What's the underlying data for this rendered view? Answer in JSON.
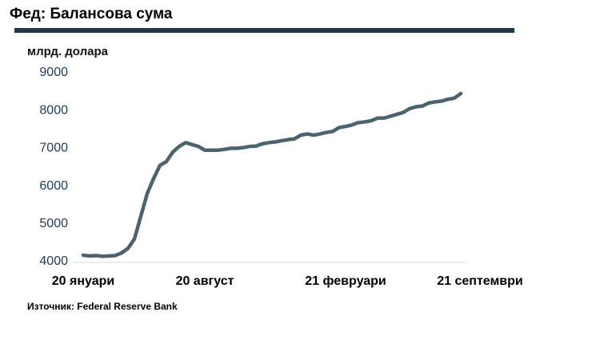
{
  "chart_data": {
    "type": "line",
    "title": "Фед: Балансова сума",
    "y_label": "млрд. долара",
    "source": "Източник: Federal Reserve Bank",
    "categories": [
      "20 януари",
      null,
      null,
      null,
      null,
      null,
      null,
      null,
      null,
      null,
      null,
      null,
      null,
      null,
      null,
      null,
      null,
      null,
      null,
      "20 август",
      null,
      null,
      null,
      null,
      null,
      null,
      null,
      null,
      null,
      null,
      null,
      null,
      null,
      null,
      null,
      null,
      null,
      null,
      null,
      null,
      null,
      "21 февруари",
      null,
      null,
      null,
      null,
      null,
      null,
      null,
      null,
      null,
      null,
      null,
      null,
      null,
      null,
      null,
      null,
      null,
      null,
      null,
      null,
      "21 септември"
    ],
    "values": [
      4170,
      4150,
      4160,
      4140,
      4150,
      4160,
      4230,
      4350,
      4600,
      5200,
      5800,
      6200,
      6550,
      6650,
      6900,
      7050,
      7150,
      7100,
      7050,
      6950,
      6950,
      6950,
      6970,
      7000,
      7000,
      7020,
      7050,
      7060,
      7120,
      7150,
      7170,
      7200,
      7230,
      7250,
      7350,
      7380,
      7350,
      7380,
      7420,
      7450,
      7550,
      7580,
      7620,
      7680,
      7700,
      7730,
      7800,
      7800,
      7850,
      7900,
      7950,
      8050,
      8100,
      8120,
      8200,
      8230,
      8250,
      8300,
      8330,
      8450,
      null,
      null,
      null
    ],
    "color": "#4a636e",
    "ylim": [
      4000,
      9000
    ],
    "yticks": [
      4000,
      5000,
      6000,
      7000,
      8000,
      9000
    ],
    "grid": false
  }
}
